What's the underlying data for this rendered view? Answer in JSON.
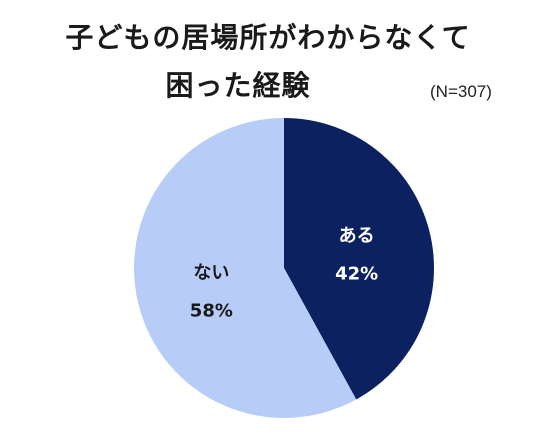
{
  "title_lines": [
    "子どもの居場所がわからなくて",
    "困った経験"
  ],
  "note": "(N=307)",
  "chart_data": {
    "type": "pie",
    "title": "子どもの居場所がわからなくて困った経験",
    "note": "(N=307)",
    "slices": [
      {
        "label": "ある",
        "value": 42,
        "value_label": "42%",
        "color": "#0c2260",
        "text_color": "#ffffff"
      },
      {
        "label": "ない",
        "value": 58,
        "value_label": "58%",
        "color": "#b7cdf8",
        "text_color": "#1a1a1a"
      }
    ]
  }
}
